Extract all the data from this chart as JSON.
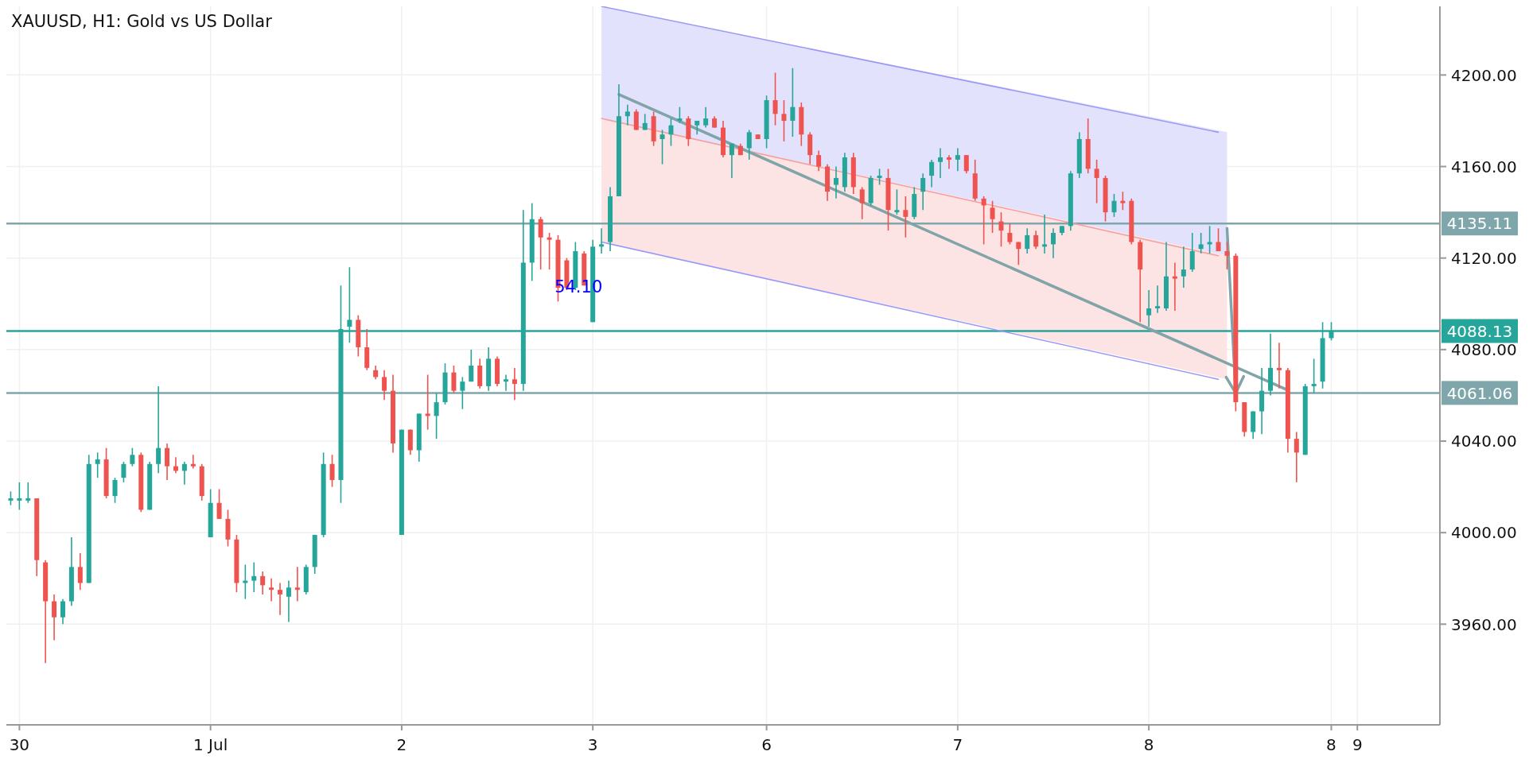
{
  "chart_data": {
    "type": "candlestick",
    "title": "XAUUSD, H1: Gold vs US Dollar",
    "categories": [
      null,
      "30",
      null,
      null,
      null,
      null,
      null,
      null,
      null,
      null,
      null,
      null,
      null,
      null,
      null,
      null,
      null,
      null,
      null,
      null,
      null,
      null,
      null,
      "1 Jul",
      null,
      null,
      null,
      null,
      null,
      null,
      null,
      null,
      null,
      null,
      null,
      null,
      null,
      null,
      null,
      null,
      null,
      null,
      null,
      null,
      null,
      "2",
      null,
      null,
      null,
      null,
      null,
      null,
      null,
      null,
      null,
      null,
      null,
      null,
      null,
      null,
      null,
      null,
      null,
      null,
      null,
      null,
      null,
      "3",
      null,
      null,
      null,
      null,
      null,
      null,
      null,
      null,
      null,
      null,
      null,
      null,
      null,
      null,
      null,
      null,
      null,
      null,
      null,
      "6",
      null,
      null,
      null,
      null,
      null,
      null,
      null,
      null,
      null,
      null,
      null,
      null,
      null,
      null,
      null,
      null,
      null,
      null,
      null,
      null,
      null,
      "7",
      null,
      null,
      null,
      null,
      null,
      null,
      null,
      null,
      null,
      null,
      null,
      null,
      null,
      null,
      null,
      null,
      null,
      null,
      null,
      null,
      null,
      "8",
      null,
      null,
      null,
      null,
      null,
      null,
      null,
      null,
      null,
      null,
      null,
      null,
      null,
      null,
      null,
      null,
      null,
      null,
      null,
      null,
      "8",
      null,
      null,
      "9",
      null,
      null,
      null,
      null,
      null,
      null,
      null,
      null,
      null
    ],
    "ohlc": [
      [
        4014,
        4018,
        4012,
        4015
      ],
      [
        4014,
        4022,
        4010,
        4015
      ],
      [
        4014,
        4022,
        4013,
        4015
      ],
      [
        4015,
        4015,
        3981,
        3988
      ],
      [
        3987,
        3988,
        3943,
        3970
      ],
      [
        3970,
        3973,
        3953,
        3963
      ],
      [
        3963,
        3971,
        3960,
        3970
      ],
      [
        3970,
        3998,
        3968,
        3985
      ],
      [
        3985,
        3991,
        3975,
        3978
      ],
      [
        3978,
        4034,
        3978,
        4030
      ],
      [
        4030,
        4035,
        4024,
        4032
      ],
      [
        4032,
        4037,
        4015,
        4016
      ],
      [
        4016,
        4024,
        4013,
        4023
      ],
      [
        4024,
        4031,
        4022,
        4030
      ],
      [
        4030,
        4037,
        4029,
        4034
      ],
      [
        4034,
        4035,
        4009,
        4010
      ],
      [
        4010,
        4031,
        4010,
        4030
      ],
      [
        4030,
        4064,
        4026,
        4037
      ],
      [
        4037,
        4039,
        4023,
        4029
      ],
      [
        4029,
        4033,
        4026,
        4027
      ],
      [
        4027,
        4031,
        4021,
        4030
      ],
      [
        4030,
        4034,
        4028,
        4029
      ],
      [
        4029,
        4030,
        4014,
        4016
      ],
      [
        3998,
        4019,
        3998,
        4013
      ],
      [
        4013,
        4019,
        4006,
        4006
      ],
      [
        4006,
        4010,
        3994,
        3997
      ],
      [
        3997,
        3999,
        3974,
        3978
      ],
      [
        3978,
        3986,
        3971,
        3979
      ],
      [
        3979,
        3987,
        3974,
        3981
      ],
      [
        3981,
        3983,
        3973,
        3977
      ],
      [
        3976,
        3980,
        3970,
        3975
      ],
      [
        3975,
        3978,
        3964,
        3973
      ],
      [
        3972,
        3979,
        3961,
        3976
      ],
      [
        3976,
        3985,
        3970,
        3975
      ],
      [
        3974,
        3986,
        3973,
        3985
      ],
      [
        3985,
        3999,
        3982,
        3999
      ],
      [
        3999,
        4035,
        3998,
        4030
      ],
      [
        4030,
        4034,
        4020,
        4023
      ],
      [
        4023,
        4108,
        4013,
        4089
      ],
      [
        4090,
        4116,
        4083,
        4093
      ],
      [
        4093,
        4095,
        4077,
        4081
      ],
      [
        4081,
        4089,
        4071,
        4072
      ],
      [
        4071,
        4073,
        4067,
        4068
      ],
      [
        4068,
        4071,
        4058,
        4062
      ],
      [
        4062,
        4069,
        4035,
        4039
      ],
      [
        3999,
        4045,
        3999,
        4045
      ],
      [
        4045,
        4045,
        4034,
        4036
      ],
      [
        4036,
        4052,
        4031,
        4052
      ],
      [
        4052,
        4069,
        4045,
        4051
      ],
      [
        4051,
        4061,
        4041,
        4057
      ],
      [
        4057,
        4074,
        4056,
        4070
      ],
      [
        4070,
        4073,
        4061,
        4062
      ],
      [
        4062,
        4068,
        4054,
        4066
      ],
      [
        4066,
        4080,
        4066,
        4073
      ],
      [
        4073,
        4076,
        4063,
        4064
      ],
      [
        4064,
        4081,
        4062,
        4076
      ],
      [
        4076,
        4077,
        4064,
        4065
      ],
      [
        4066,
        4069,
        4062,
        4067
      ],
      [
        4067,
        4072,
        4058,
        4065
      ],
      [
        4065,
        4141,
        4062,
        4118
      ],
      [
        4118,
        4144,
        4110,
        4137
      ],
      [
        4137,
        4138,
        4115,
        4129
      ],
      [
        4129,
        4131,
        4115,
        4128
      ],
      [
        4128,
        4130,
        4101,
        4107
      ],
      [
        4119,
        4120,
        4106,
        4107
      ],
      [
        4107,
        4127,
        4106,
        4123
      ],
      [
        4122,
        4123,
        4108,
        4108
      ],
      [
        4092,
        4128,
        4092,
        4125
      ],
      [
        4125,
        4133,
        4122,
        4126
      ],
      [
        4127,
        4151,
        4123,
        4147
      ],
      [
        4147,
        4196,
        4147,
        4182
      ],
      [
        4182,
        4187,
        4178,
        4184
      ],
      [
        4184,
        4185,
        4176,
        4176
      ],
      [
        4176,
        4183,
        4176,
        4179
      ],
      [
        4182,
        4184,
        4169,
        4171
      ],
      [
        4172,
        4176,
        4161,
        4174
      ],
      [
        4174,
        4181,
        4169,
        4178
      ],
      [
        4180,
        4186,
        4179,
        4181
      ],
      [
        4181,
        4182,
        4169,
        4172
      ],
      [
        4178,
        4180,
        4174,
        4180
      ],
      [
        4178,
        4186,
        4177,
        4181
      ],
      [
        4181,
        4182,
        4177,
        4177
      ],
      [
        4177,
        4180,
        4164,
        4165
      ],
      [
        4165,
        4170,
        4155,
        4170
      ],
      [
        4169,
        4170,
        4165,
        4165
      ],
      [
        4168,
        4176,
        4163,
        4175
      ],
      [
        4174,
        4174,
        4172,
        4172
      ],
      [
        4172,
        4191,
        4168,
        4189
      ],
      [
        4189,
        4201,
        4178,
        4183
      ],
      [
        4183,
        4189,
        4171,
        4180
      ],
      [
        4180,
        4203,
        4173,
        4186
      ],
      [
        4186,
        4188,
        4169,
        4174
      ],
      [
        4174,
        4175,
        4161,
        4165
      ],
      [
        4165,
        4167,
        4158,
        4160
      ],
      [
        4160,
        4161,
        4145,
        4149
      ],
      [
        4152,
        4160,
        4146,
        4155
      ],
      [
        4151,
        4166,
        4149,
        4164
      ],
      [
        4164,
        4166,
        4148,
        4151
      ],
      [
        4150,
        4151,
        4137,
        4144
      ],
      [
        4144,
        4156,
        4143,
        4155
      ],
      [
        4155,
        4159,
        4152,
        4156
      ],
      [
        4155,
        4159,
        4132,
        4141
      ],
      [
        4140,
        4150,
        4139,
        4141
      ],
      [
        4141,
        4147,
        4129,
        4138
      ],
      [
        4138,
        4151,
        4137,
        4148
      ],
      [
        4149,
        4157,
        4141,
        4155
      ],
      [
        4156,
        4163,
        4151,
        4162
      ],
      [
        4162,
        4168,
        4155,
        4164
      ],
      [
        4164,
        4165,
        4159,
        4163
      ],
      [
        4163,
        4168,
        4158,
        4165
      ],
      [
        4165,
        4165,
        4157,
        4158
      ],
      [
        4157,
        4163,
        4145,
        4146
      ],
      [
        4146,
        4147,
        4126,
        4143
      ],
      [
        4142,
        4145,
        4131,
        4137
      ],
      [
        4136,
        4140,
        4125,
        4132
      ],
      [
        4131,
        4135,
        4126,
        4127
      ],
      [
        4127,
        4127,
        4117,
        4124
      ],
      [
        4124,
        4133,
        4122,
        4130
      ],
      [
        4130,
        4132,
        4124,
        4125
      ],
      [
        4125,
        4139,
        4122,
        4126
      ],
      [
        4126,
        4133,
        4120,
        4131
      ],
      [
        4131,
        4134,
        4130,
        4134
      ],
      [
        4134,
        4158,
        4132,
        4157
      ],
      [
        4157,
        4175,
        4155,
        4172
      ],
      [
        4172,
        4181,
        4157,
        4159
      ],
      [
        4159,
        4163,
        4144,
        4155
      ],
      [
        4155,
        4156,
        4136,
        4140
      ],
      [
        4140,
        4148,
        4138,
        4145
      ],
      [
        4145,
        4149,
        4141,
        4144
      ],
      [
        4145,
        4146,
        4126,
        4127
      ],
      [
        4127,
        4128,
        4092,
        4115
      ],
      [
        4095,
        4106,
        4090,
        4098
      ],
      [
        4098,
        4108,
        4096,
        4099
      ],
      [
        4098,
        4127,
        4097,
        4112
      ],
      [
        4112,
        4118,
        4097,
        4111
      ],
      [
        4112,
        4125,
        4107,
        4115
      ],
      [
        4115,
        4131,
        4114,
        4123
      ],
      [
        4124,
        4131,
        4122,
        4126
      ],
      [
        4126,
        4134,
        4122,
        4127
      ],
      [
        4127,
        4133,
        4123,
        4123
      ],
      [
        4123,
        4127,
        4115,
        4121
      ],
      [
        4121,
        4122,
        4053,
        4057
      ],
      [
        4057,
        4057,
        4042,
        4044
      ],
      [
        4044,
        4053,
        4041,
        4053
      ],
      [
        4053,
        4072,
        4043,
        4062
      ],
      [
        4062,
        4087,
        4060,
        4072
      ],
      [
        4072,
        4083,
        4063,
        4071
      ],
      [
        4071,
        4072,
        4035,
        4041
      ],
      [
        4041,
        4044,
        4022,
        4035
      ],
      [
        4034,
        4065,
        4034,
        4064
      ],
      [
        4064,
        4076,
        4061,
        4065
      ],
      [
        4066,
        4092,
        4063,
        4085
      ],
      [
        4085,
        4092,
        4084,
        4088
      ],
      null,
      null,
      null,
      null,
      null,
      null,
      null,
      null,
      null,
      null,
      null,
      null
    ],
    "ylim": [
      3916,
      4230
    ],
    "yticks": [
      {
        "value": 3960,
        "label": "3960.00"
      },
      {
        "value": 4000,
        "label": "4000.00"
      },
      {
        "value": 4040,
        "label": "4040.00"
      },
      {
        "value": 4080,
        "label": "4080.00"
      },
      {
        "value": 4120,
        "label": "4120.00"
      },
      {
        "value": 4160,
        "label": "4160.00"
      },
      {
        "value": 4200,
        "label": "4200.00"
      }
    ],
    "ref_lines": [
      {
        "axis": "y",
        "value": 4135.11,
        "label": "4135.11",
        "color": "#7fa6aa"
      },
      {
        "axis": "y",
        "value": 4088.13,
        "label": "4088.13",
        "color": "#26a69a"
      },
      {
        "axis": "y",
        "value": 4061.06,
        "label": "4061.06",
        "color": "#7fa6aa"
      }
    ],
    "series": [
      {
        "type": "line",
        "color": "#9a9af5",
        "values": [
          null,
          null,
          null,
          null,
          null,
          null,
          null,
          null,
          null,
          null,
          null,
          null,
          null,
          null,
          null,
          null,
          null,
          null,
          null,
          null,
          null,
          null,
          null,
          null,
          null,
          null,
          null,
          null,
          null,
          null,
          null,
          null,
          null,
          null,
          null,
          null,
          null,
          null,
          null,
          null,
          null,
          null,
          null,
          null,
          null,
          null,
          null,
          null,
          null,
          null,
          null,
          null,
          null,
          null,
          null,
          null,
          null,
          null,
          null,
          null,
          null,
          null,
          null,
          null,
          null,
          null,
          null,
          null,
          4230,
          null,
          null,
          null,
          null,
          null,
          null,
          null,
          null,
          null,
          null,
          null,
          null,
          null,
          null,
          null,
          null,
          null,
          null,
          null,
          null,
          null,
          null,
          null,
          null,
          null,
          null,
          null,
          null,
          null,
          null,
          null,
          null,
          null,
          null,
          null,
          null,
          null,
          null,
          null,
          null,
          null,
          null,
          null,
          null,
          null,
          null,
          null,
          null,
          null,
          null,
          null,
          null,
          null,
          null,
          null,
          null,
          null,
          null,
          null,
          null,
          null,
          null,
          null,
          null,
          null,
          null,
          null,
          null,
          null,
          null,
          4175,
          null,
          null,
          null,
          null,
          null,
          null,
          null,
          null,
          null,
          null,
          null,
          null,
          null,
          null,
          null,
          null,
          null,
          null,
          null,
          null,
          null,
          null,
          null,
          null,
          null
        ]
      },
      {
        "type": "line",
        "color": "#f5a0a0",
        "values": [
          null,
          null,
          null,
          null,
          null,
          null,
          null,
          null,
          null,
          null,
          null,
          null,
          null,
          null,
          null,
          null,
          null,
          null,
          null,
          null,
          null,
          null,
          null,
          null,
          null,
          null,
          null,
          null,
          null,
          null,
          null,
          null,
          null,
          null,
          null,
          null,
          null,
          null,
          null,
          null,
          null,
          null,
          null,
          null,
          null,
          null,
          null,
          null,
          null,
          null,
          null,
          null,
          null,
          null,
          null,
          null,
          null,
          null,
          null,
          null,
          null,
          null,
          null,
          null,
          null,
          null,
          null,
          null,
          4181,
          null,
          null,
          null,
          null,
          null,
          null,
          null,
          null,
          null,
          null,
          null,
          null,
          null,
          null,
          null,
          null,
          null,
          null,
          null,
          null,
          null,
          null,
          null,
          null,
          null,
          null,
          null,
          null,
          null,
          null,
          null,
          null,
          null,
          null,
          null,
          null,
          null,
          null,
          null,
          null,
          null,
          null,
          null,
          null,
          null,
          null,
          null,
          null,
          null,
          null,
          null,
          null,
          null,
          null,
          null,
          null,
          null,
          null,
          null,
          null,
          null,
          null,
          null,
          null,
          null,
          null,
          null,
          null,
          null,
          null,
          4121,
          null,
          null,
          null,
          null,
          null,
          null,
          null,
          null,
          null,
          null,
          null,
          null,
          null,
          null,
          null,
          null,
          null,
          null,
          null,
          null,
          null,
          null,
          null,
          null,
          null
        ]
      },
      {
        "type": "line",
        "color": "#9a9af5",
        "values": [
          null,
          null,
          null,
          null,
          null,
          null,
          null,
          null,
          null,
          null,
          null,
          null,
          null,
          null,
          null,
          null,
          null,
          null,
          null,
          null,
          null,
          null,
          null,
          null,
          null,
          null,
          null,
          null,
          null,
          null,
          null,
          null,
          null,
          null,
          null,
          null,
          null,
          null,
          null,
          null,
          null,
          null,
          null,
          null,
          null,
          null,
          null,
          null,
          null,
          null,
          null,
          null,
          null,
          null,
          null,
          null,
          null,
          null,
          null,
          null,
          null,
          null,
          null,
          null,
          null,
          null,
          null,
          null,
          4127,
          null,
          null,
          null,
          null,
          null,
          null,
          null,
          null,
          null,
          null,
          null,
          null,
          null,
          null,
          null,
          null,
          null,
          null,
          null,
          null,
          null,
          null,
          null,
          null,
          null,
          null,
          null,
          null,
          null,
          null,
          null,
          null,
          null,
          null,
          null,
          null,
          null,
          null,
          null,
          null,
          null,
          null,
          null,
          null,
          null,
          null,
          null,
          null,
          null,
          null,
          null,
          null,
          null,
          null,
          null,
          null,
          null,
          null,
          null,
          null,
          null,
          null,
          null,
          null,
          null,
          null,
          null,
          null,
          null,
          null,
          4067,
          null,
          null,
          null,
          null,
          null,
          null,
          null,
          null,
          null,
          null,
          null,
          null,
          null,
          null,
          null,
          null,
          null,
          null,
          null,
          null,
          null,
          null,
          null,
          null,
          null
        ]
      },
      {
        "type": "line",
        "color": "#80a4a8",
        "values": [
          null,
          null,
          null,
          null,
          null,
          null,
          null,
          null,
          null,
          null,
          null,
          null,
          null,
          null,
          null,
          null,
          null,
          null,
          null,
          null,
          null,
          null,
          null,
          null,
          null,
          null,
          null,
          null,
          null,
          null,
          null,
          null,
          null,
          null,
          null,
          null,
          null,
          null,
          null,
          null,
          null,
          null,
          null,
          null,
          null,
          null,
          null,
          null,
          null,
          null,
          null,
          null,
          null,
          null,
          null,
          null,
          null,
          null,
          null,
          null,
          null,
          null,
          null,
          null,
          null,
          null,
          null,
          null,
          null,
          null,
          4191.5,
          null,
          null,
          null,
          null,
          null,
          null,
          null,
          null,
          null,
          null,
          null,
          null,
          null,
          null,
          null,
          null,
          null,
          null,
          null,
          null,
          null,
          null,
          null,
          null,
          null,
          null,
          null,
          null,
          null,
          null,
          null,
          null,
          null,
          null,
          null,
          null,
          null,
          null,
          null,
          null,
          null,
          null,
          null,
          null,
          null,
          null,
          null,
          null,
          null,
          null,
          null,
          null,
          null,
          null,
          null,
          null,
          null,
          null,
          null,
          null,
          null,
          null,
          null,
          null,
          null,
          null,
          null,
          null,
          null,
          null,
          null,
          null,
          null,
          null,
          null,
          null,
          4062.3,
          null,
          null,
          null,
          null,
          null,
          null,
          null,
          null,
          null,
          null,
          null,
          null,
          null,
          null,
          null,
          null,
          null
        ]
      }
    ],
    "annotations": [
      "54.10"
    ],
    "grid": true
  }
}
